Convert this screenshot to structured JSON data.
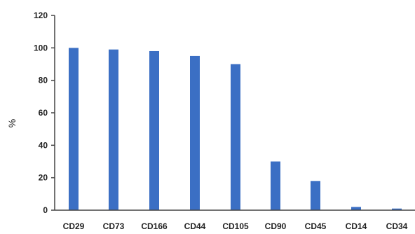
{
  "chart_data": {
    "type": "bar",
    "title": "",
    "xlabel": "",
    "ylabel": "%",
    "categories": [
      "CD29",
      "CD73",
      "CD166",
      "CD44",
      "CD105",
      "CD90",
      "CD45",
      "CD14",
      "CD34"
    ],
    "values": [
      100,
      99,
      98,
      95,
      90,
      30,
      18,
      2,
      1
    ],
    "ylim": [
      0,
      120
    ],
    "yticks": [
      0,
      20,
      40,
      60,
      80,
      100,
      120
    ],
    "bar_color": "#3b6fc4",
    "grid": false,
    "legend": "none"
  }
}
